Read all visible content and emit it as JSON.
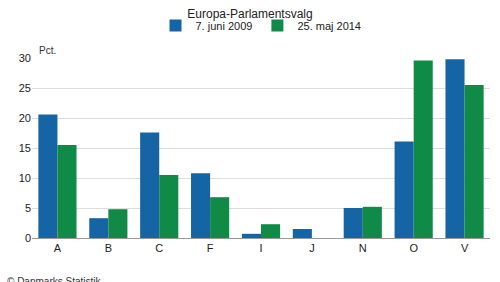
{
  "chart_data": {
    "type": "bar",
    "title": "Europa-Parlamentsvalg",
    "y_label": "Pct.",
    "annotations": [
      "© Danmarks Statistik"
    ],
    "categories": [
      "A",
      "B",
      "C",
      "F",
      "I",
      "J",
      "N",
      "O",
      "V"
    ],
    "series": [
      {
        "name": "7. juni 2009",
        "color": "#1565a5",
        "values": [
          20.6,
          3.3,
          17.6,
          10.8,
          0.7,
          1.5,
          5.0,
          16.1,
          29.8
        ]
      },
      {
        "name": "25. maj 2014",
        "color": "#0f8a47",
        "values": [
          15.5,
          4.8,
          10.5,
          6.8,
          2.3,
          null,
          5.2,
          29.6,
          25.5
        ]
      }
    ],
    "ylim": [
      0,
      30
    ],
    "yticks": [
      0,
      5,
      10,
      15,
      20,
      25,
      30
    ],
    "grid": true,
    "legend": "top"
  }
}
